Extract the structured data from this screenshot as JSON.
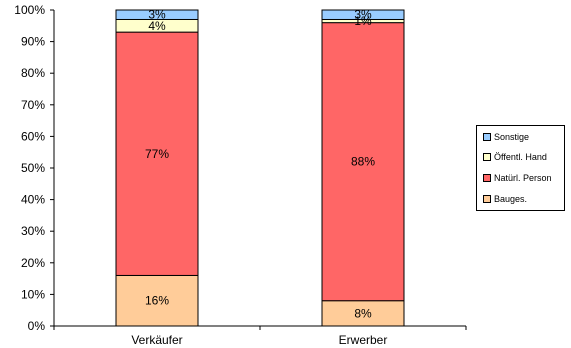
{
  "chart_data": {
    "type": "bar",
    "stacked": true,
    "normalized": true,
    "categories": [
      "Verkäufer",
      "Erwerber"
    ],
    "series": [
      {
        "name": "Bauges.",
        "values": [
          16,
          8
        ],
        "labels": [
          "16%",
          "8%"
        ],
        "color": "#FFCC99"
      },
      {
        "name": "Natürl. Person",
        "values": [
          77,
          88
        ],
        "labels": [
          "77%",
          "88%"
        ],
        "color": "#FF6666"
      },
      {
        "name": "Öffentl. Hand",
        "values": [
          4,
          1
        ],
        "labels": [
          "4%",
          "1%"
        ],
        "color": "#FFFFCC"
      },
      {
        "name": "Sonstige",
        "values": [
          3,
          3
        ],
        "labels": [
          "3%",
          "3%"
        ],
        "color": "#99CCFF"
      }
    ],
    "ylim": [
      0,
      100
    ],
    "yticks": [
      "0%",
      "10%",
      "20%",
      "30%",
      "40%",
      "50%",
      "60%",
      "70%",
      "80%",
      "90%",
      "100%"
    ],
    "grid": false,
    "legend_position": "right",
    "legend": [
      {
        "name": "Sonstige",
        "color": "#99CCFF"
      },
      {
        "name": "Öffentl. Hand",
        "color": "#FFFFCC"
      },
      {
        "name": "Natürl. Person",
        "color": "#FF6666"
      },
      {
        "name": "Bauges.",
        "color": "#FFCC99"
      }
    ]
  }
}
